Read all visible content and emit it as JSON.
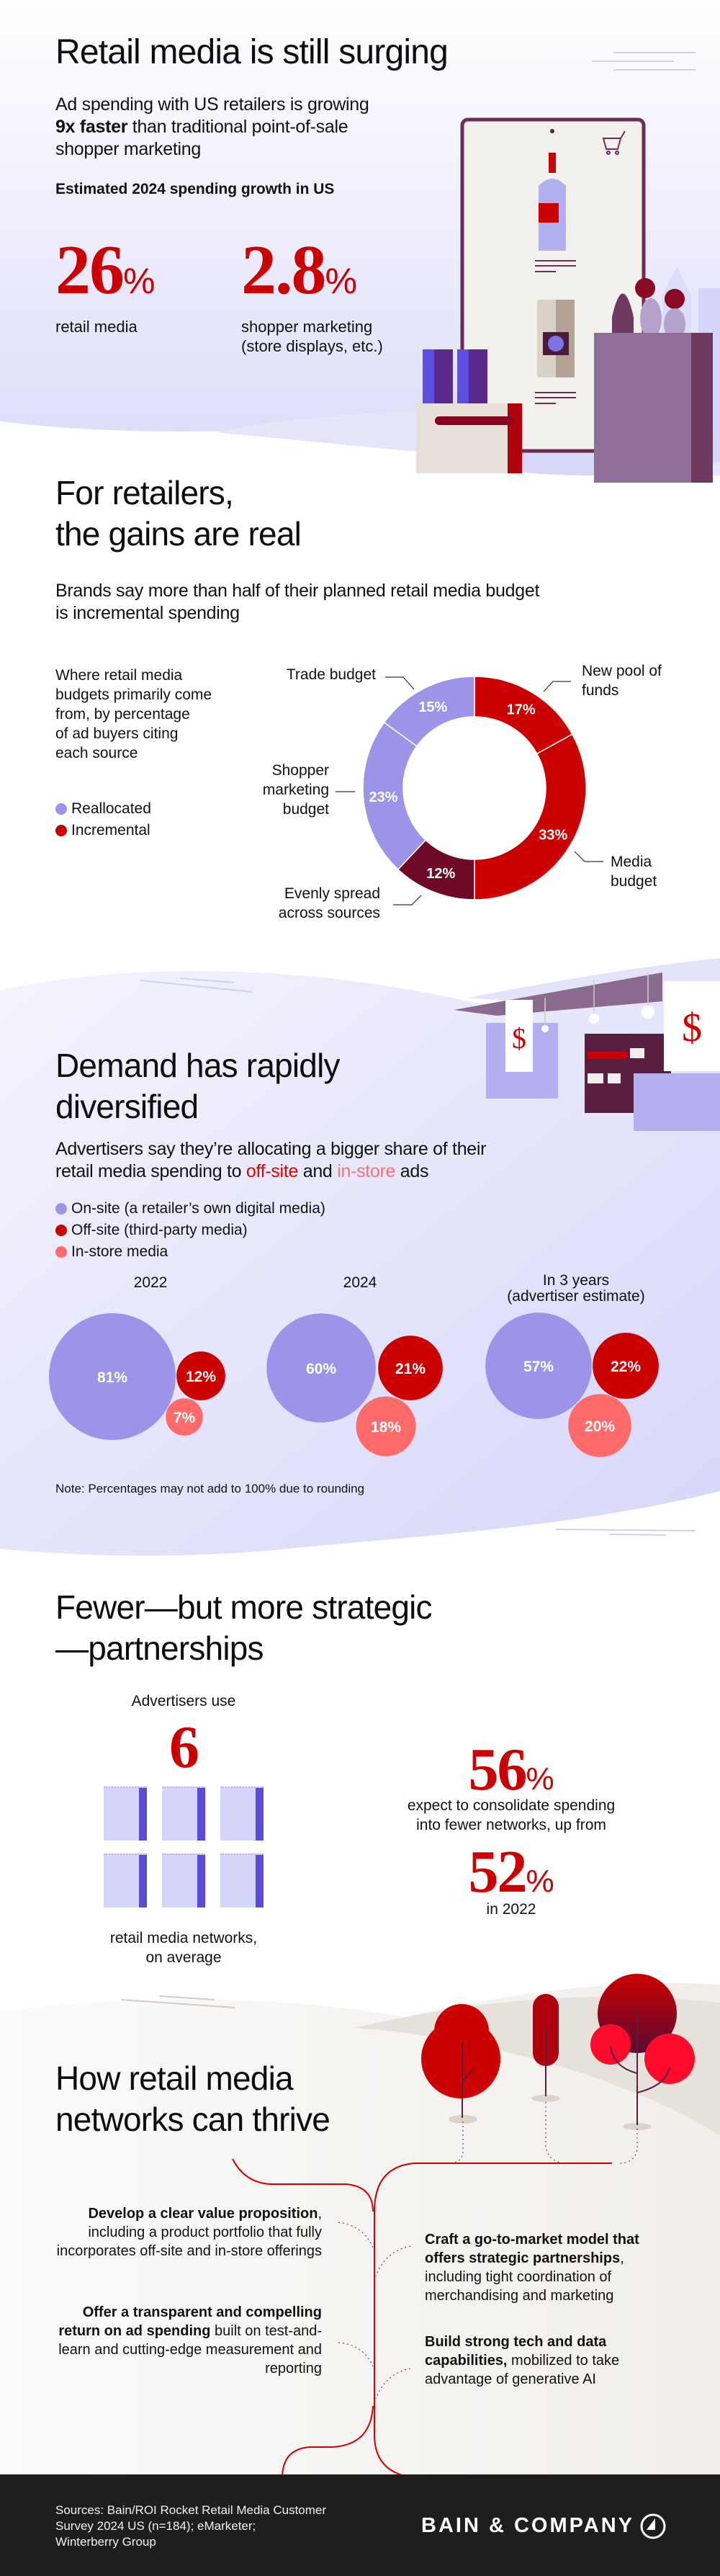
{
  "colors": {
    "red": "#cc0000",
    "maroon": "#6e0a28",
    "lavender": "#9b94e8",
    "pink": "#ff6b6b",
    "footer": "#1e1e1e"
  },
  "section1": {
    "title": "Retail media is still surging",
    "subtitle_line1": "Ad spending with US retailers is growing",
    "subtitle_bold": "9x faster",
    "subtitle_rest": " than traditional point-of-sale",
    "subtitle_line3": "shopper marketing",
    "stat_heading": "Estimated 2024 spending growth in US",
    "stats": [
      {
        "value": "26",
        "unit": "%",
        "label_line1": "retail media",
        "label_line2": ""
      },
      {
        "value": "2.8",
        "unit": "%",
        "label_line1": "shopper marketing",
        "label_line2": "(store displays, etc.)"
      }
    ],
    "illustration_icons": [
      "smartphone-icon",
      "shopping-cart-icon",
      "wine-bottle-icon",
      "shopping-bag-icon"
    ]
  },
  "section2": {
    "title_line1": "For retailers,",
    "title_line2": "the gains are real",
    "subtitle_line1": "Brands say more than half of their planned retail media budget",
    "subtitle_line2": "is incremental spending",
    "description": [
      "Where retail media",
      "budgets primarily come",
      "from, by percentage",
      "of ad buyers citing",
      "each source"
    ],
    "legend": [
      {
        "label": "Reallocated",
        "color": "#9b94e8"
      },
      {
        "label": "Incremental",
        "color": "#cc0000"
      }
    ]
  },
  "section3": {
    "title_line1": "Demand has rapidly",
    "title_line2": "diversified",
    "subtitle_line1": "Advertisers say they’re allocating a bigger share of their",
    "subtitle_pre": "retail media spending to ",
    "subtitle_offsite": "off-site",
    "subtitle_and": " and ",
    "subtitle_instore": "in-store",
    "subtitle_post": " ads",
    "legend": [
      {
        "label": "On-site (a retailer’s own digital media)",
        "color": "#9b94e8"
      },
      {
        "label": "Off-site (third-party media)",
        "color": "#cc0000"
      },
      {
        "label": "In-store media",
        "color": "#ff6b6b"
      }
    ],
    "note": "Note: Percentages may not add to 100% due to rounding"
  },
  "section4": {
    "title_line1": "Fewer—but more strategic",
    "title_line2": "—partnerships",
    "left_intro": "Advertisers use",
    "left_value": "6",
    "left_label_line1": "retail media networks,",
    "left_label_line2": "on average",
    "network_icon_count": 6,
    "stat1_value": "56",
    "stat1_unit": "%",
    "stat1_line1": "expect to consolidate spending",
    "stat1_line2": "into fewer networks, up from",
    "stat2_value": "52",
    "stat2_unit": "%",
    "stat2_label": "in 2022"
  },
  "section5": {
    "title_line1": "How retail media",
    "title_line2": "networks can thrive",
    "tips": [
      {
        "bold": "Develop a clear value proposition",
        "rest": ", including a product portfolio that fully incorporates off-site and in-store offerings"
      },
      {
        "bold": "Offer a transparent and compelling return on ad spending",
        "rest": " built on test-and-learn and cutting-edge measurement and reporting"
      },
      {
        "bold": "Craft a go-to-market model that offers strategic partnerships",
        "rest": ", including tight coordination of merchandising and marketing"
      },
      {
        "bold": "Build strong tech and data capabilities,",
        "rest": " mobilized to take advantage of generative AI"
      }
    ]
  },
  "footer": {
    "sources_line1": "Sources: Bain/ROI Rocket Retail Media Customer",
    "sources_line2": "Survey 2024 US (n=184); eMarketer;",
    "sources_line3": "Winterberry Group",
    "logo_text": "BAIN & COMPANY"
  },
  "chart_data": [
    {
      "type": "pie",
      "variant": "donut",
      "slices": [
        {
          "label": "New pool of funds",
          "value": 17,
          "group": "Incremental",
          "color": "#cc0000"
        },
        {
          "label": "Media budget",
          "value": 33,
          "group": "Incremental",
          "color": "#cc0000"
        },
        {
          "label": "Evenly spread across sources",
          "value": 12,
          "group": "Incremental",
          "color": "#6e0a28"
        },
        {
          "label": "Shopper marketing budget",
          "value": 23,
          "group": "Reallocated",
          "color": "#9b94e8"
        },
        {
          "label": "Trade budget",
          "value": 15,
          "group": "Reallocated",
          "color": "#9b94e8"
        }
      ],
      "unit": "%"
    },
    {
      "type": "bubble",
      "groups": [
        {
          "label_line1": "2022",
          "label_line2": "",
          "values": {
            "on_site": 81,
            "off_site": 12,
            "in_store": 7
          }
        },
        {
          "label_line1": "2024",
          "label_line2": "",
          "values": {
            "on_site": 60,
            "off_site": 21,
            "in_store": 18
          }
        },
        {
          "label_line1": "In 3 years",
          "label_line2": "(advertiser estimate)",
          "values": {
            "on_site": 57,
            "off_site": 22,
            "in_store": 20
          }
        }
      ],
      "series": [
        "On-site (a retailer’s own digital media)",
        "Off-site (third-party media)",
        "In-store media"
      ],
      "unit": "%"
    }
  ]
}
